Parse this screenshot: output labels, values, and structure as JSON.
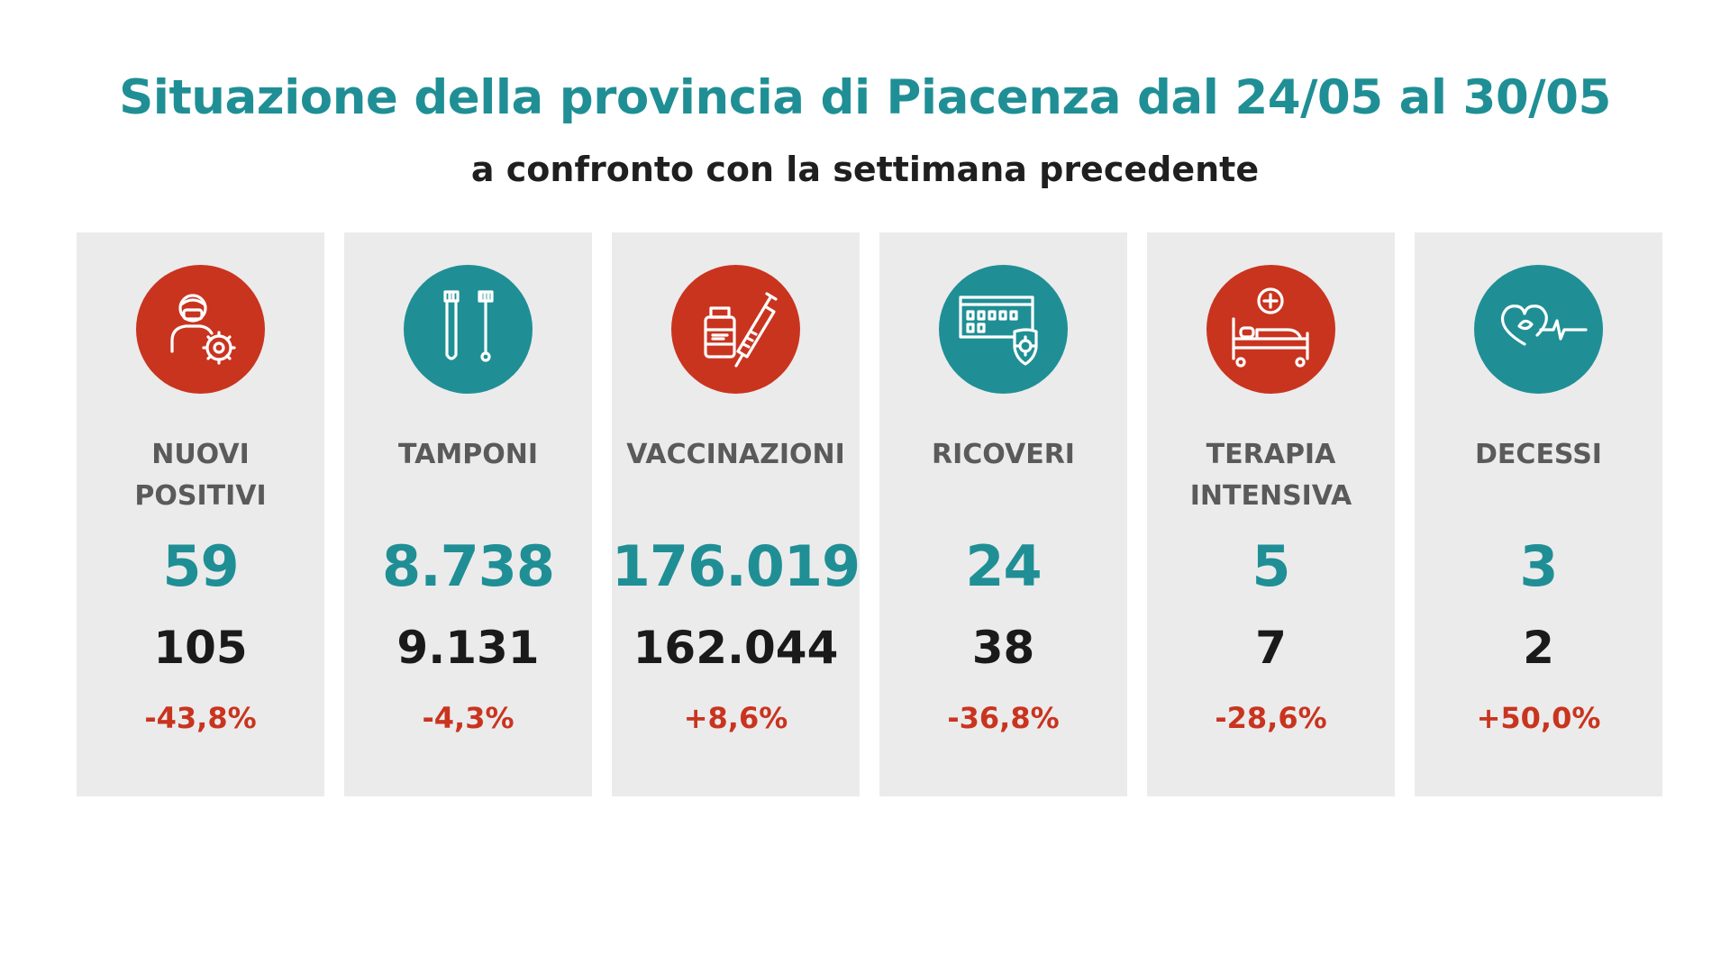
{
  "header": {
    "title": "Situazione della provincia di Piacenza dal 24/05 al 30/05",
    "subtitle": "a confronto con la settimana precedente"
  },
  "colors": {
    "teal": "#1f8f95",
    "red": "#c9341f",
    "card_bg": "#ebebeb",
    "delta": "#c9341f"
  },
  "cards": [
    {
      "label_line1": "NUOVI",
      "label_line2": "POSITIVI",
      "current": "59",
      "previous": "105",
      "delta": "-43,8%",
      "icon": "masked-person-virus-icon",
      "icon_color": "#c9341f"
    },
    {
      "label_line1": "TAMPONI",
      "label_line2": "",
      "current": "8.738",
      "previous": "9.131",
      "delta": "-4,3%",
      "icon": "swab-test-tubes-icon",
      "icon_color": "#1f8f95"
    },
    {
      "label_line1": "VACCINAZIONI",
      "label_line2": "",
      "current": "176.019",
      "previous": "162.044",
      "delta": "+8,6%",
      "icon": "vaccine-vial-syringe-icon",
      "icon_color": "#c9341f"
    },
    {
      "label_line1": "RICOVERI",
      "label_line2": "",
      "current": "24",
      "previous": "38",
      "delta": "-36,8%",
      "icon": "hospital-shield-virus-icon",
      "icon_color": "#1f8f95"
    },
    {
      "label_line1": "TERAPIA",
      "label_line2": "INTENSIVA",
      "current": "5",
      "previous": "7",
      "delta": "-28,6%",
      "icon": "hospital-bed-icon",
      "icon_color": "#c9341f"
    },
    {
      "label_line1": "DECESSI",
      "label_line2": "",
      "current": "3",
      "previous": "2",
      "delta": "+50,0%",
      "icon": "heart-monitor-icon",
      "icon_color": "#1f8f95"
    }
  ]
}
